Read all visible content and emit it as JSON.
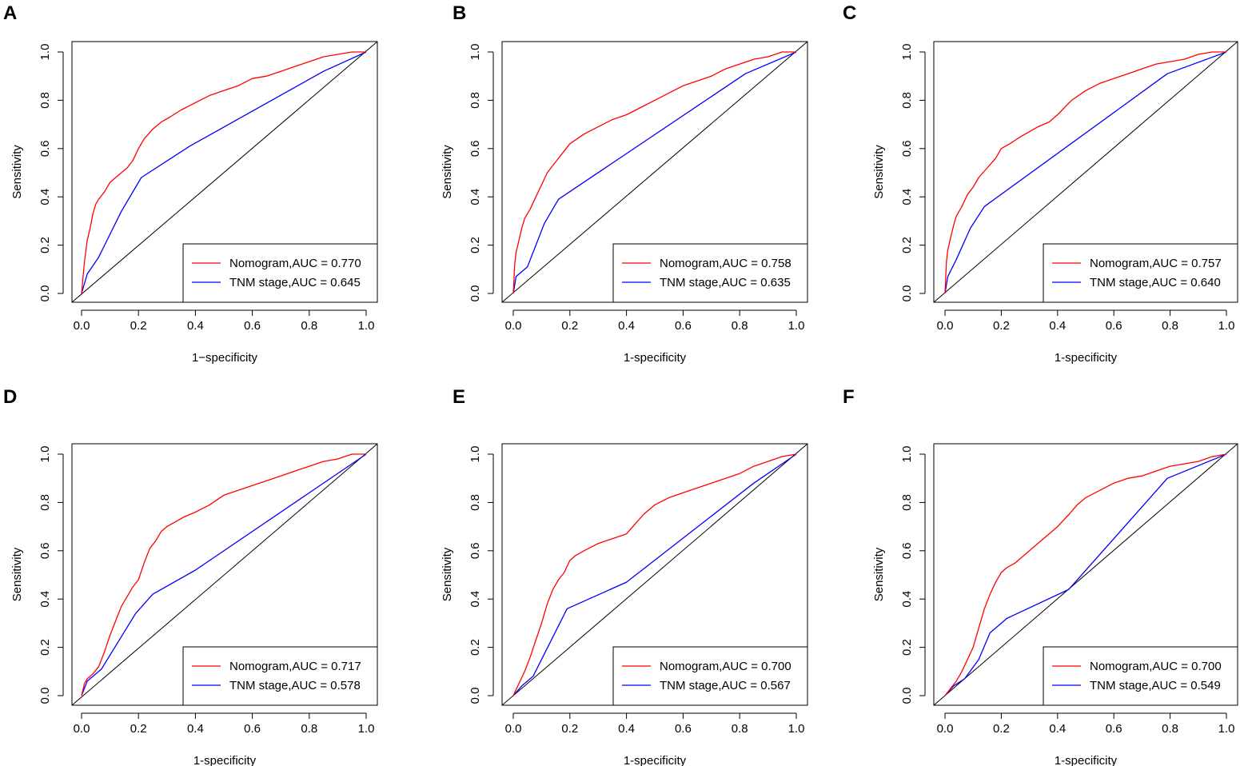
{
  "figure": {
    "colors": {
      "nomogram": "#ff0000",
      "tnm": "#0000ff",
      "reference": "#000000"
    }
  },
  "chart_data": [
    {
      "panel": "A",
      "type": "line",
      "xlabel": "1−specificity",
      "ylabel": "Sensitivity",
      "xlim": [
        0,
        1
      ],
      "ylim": [
        0,
        1
      ],
      "xticks": [
        "0.0",
        "0.2",
        "0.4",
        "0.6",
        "0.8",
        "1.0"
      ],
      "yticks": [
        "0.0",
        "0.2",
        "0.4",
        "0.6",
        "0.8",
        "1.0"
      ],
      "legend": "bottom-right",
      "series": [
        {
          "name": "Nomogram,AUC = 0.770",
          "color": "#ff0000",
          "x": [
            0,
            0.01,
            0.02,
            0.03,
            0.04,
            0.05,
            0.06,
            0.08,
            0.1,
            0.12,
            0.14,
            0.16,
            0.18,
            0.2,
            0.22,
            0.25,
            0.28,
            0.31,
            0.35,
            0.4,
            0.45,
            0.5,
            0.55,
            0.6,
            0.65,
            0.7,
            0.75,
            0.8,
            0.85,
            0.9,
            0.95,
            1.0
          ],
          "y": [
            0,
            0.13,
            0.22,
            0.27,
            0.33,
            0.37,
            0.39,
            0.42,
            0.46,
            0.48,
            0.5,
            0.52,
            0.55,
            0.6,
            0.64,
            0.68,
            0.71,
            0.73,
            0.76,
            0.79,
            0.82,
            0.84,
            0.86,
            0.89,
            0.9,
            0.92,
            0.94,
            0.96,
            0.98,
            0.99,
            1.0,
            1.0
          ]
        },
        {
          "name": "TNM stage,AUC = 0.645",
          "color": "#0000ff",
          "x": [
            0,
            0.02,
            0.06,
            0.14,
            0.21,
            0.38,
            0.85,
            1.0
          ],
          "y": [
            0,
            0.08,
            0.15,
            0.34,
            0.48,
            0.61,
            0.92,
            1.0
          ]
        }
      ]
    },
    {
      "panel": "B",
      "type": "line",
      "xlabel": "1-specificity",
      "ylabel": "Sensitivity",
      "xlim": [
        0,
        1
      ],
      "ylim": [
        0,
        1
      ],
      "xticks": [
        "0.0",
        "0.2",
        "0.4",
        "0.6",
        "0.8",
        "1.0"
      ],
      "yticks": [
        "0.0",
        "0.2",
        "0.4",
        "0.6",
        "0.8",
        "1.0"
      ],
      "legend": "bottom-right",
      "series": [
        {
          "name": "Nomogram,AUC = 0.758",
          "color": "#ff0000",
          "x": [
            0,
            0.005,
            0.01,
            0.02,
            0.03,
            0.04,
            0.06,
            0.08,
            0.1,
            0.12,
            0.14,
            0.16,
            0.18,
            0.2,
            0.25,
            0.3,
            0.35,
            0.4,
            0.45,
            0.5,
            0.55,
            0.6,
            0.65,
            0.7,
            0.75,
            0.8,
            0.85,
            0.9,
            0.95,
            1.0
          ],
          "y": [
            0,
            0.12,
            0.17,
            0.22,
            0.27,
            0.31,
            0.35,
            0.4,
            0.45,
            0.5,
            0.53,
            0.56,
            0.59,
            0.62,
            0.66,
            0.69,
            0.72,
            0.74,
            0.77,
            0.8,
            0.83,
            0.86,
            0.88,
            0.9,
            0.93,
            0.95,
            0.97,
            0.98,
            1.0,
            1.0
          ]
        },
        {
          "name": "TNM stage,AUC = 0.635",
          "color": "#0000ff",
          "x": [
            0,
            0.01,
            0.05,
            0.11,
            0.16,
            0.82,
            1.0
          ],
          "y": [
            0,
            0.07,
            0.11,
            0.29,
            0.39,
            0.91,
            1.0
          ]
        }
      ]
    },
    {
      "panel": "C",
      "type": "line",
      "xlabel": "1-specificity",
      "ylabel": "Sensitivity",
      "xlim": [
        0,
        1
      ],
      "ylim": [
        0,
        1
      ],
      "xticks": [
        "0.0",
        "0.2",
        "0.4",
        "0.6",
        "0.8",
        "1.0"
      ],
      "yticks": [
        "0.0",
        "0.2",
        "0.4",
        "0.6",
        "0.8",
        "1.0"
      ],
      "legend": "bottom-right",
      "series": [
        {
          "name": "Nomogram,AUC = 0.757",
          "color": "#ff0000",
          "x": [
            0,
            0.005,
            0.01,
            0.02,
            0.03,
            0.04,
            0.06,
            0.08,
            0.1,
            0.12,
            0.15,
            0.18,
            0.2,
            0.23,
            0.27,
            0.3,
            0.33,
            0.37,
            0.4,
            0.45,
            0.5,
            0.55,
            0.6,
            0.65,
            0.7,
            0.75,
            0.8,
            0.85,
            0.9,
            0.95,
            1.0
          ],
          "y": [
            0,
            0.13,
            0.18,
            0.23,
            0.28,
            0.32,
            0.36,
            0.41,
            0.44,
            0.48,
            0.52,
            0.56,
            0.6,
            0.62,
            0.65,
            0.67,
            0.69,
            0.71,
            0.74,
            0.8,
            0.84,
            0.87,
            0.89,
            0.91,
            0.93,
            0.95,
            0.96,
            0.97,
            0.99,
            1.0,
            1.0
          ]
        },
        {
          "name": "TNM stage,AUC = 0.640",
          "color": "#0000ff",
          "x": [
            0,
            0.01,
            0.04,
            0.09,
            0.14,
            0.79,
            1.0
          ],
          "y": [
            0,
            0.07,
            0.14,
            0.27,
            0.36,
            0.91,
            1.0
          ]
        }
      ]
    },
    {
      "panel": "D",
      "type": "line",
      "xlabel": "1-specificity",
      "ylabel": "Sensitivity",
      "xlim": [
        0,
        1
      ],
      "ylim": [
        0,
        1
      ],
      "xticks": [
        "0.0",
        "0.2",
        "0.4",
        "0.6",
        "0.8",
        "1.0"
      ],
      "yticks": [
        "0.0",
        "0.2",
        "0.4",
        "0.6",
        "0.8",
        "1.0"
      ],
      "legend": "bottom-right",
      "series": [
        {
          "name": "Nomogram,AUC = 0.717",
          "color": "#ff0000",
          "x": [
            0,
            0.01,
            0.02,
            0.04,
            0.06,
            0.08,
            0.1,
            0.12,
            0.14,
            0.16,
            0.18,
            0.2,
            0.22,
            0.24,
            0.26,
            0.28,
            0.3,
            0.33,
            0.36,
            0.4,
            0.45,
            0.5,
            0.55,
            0.6,
            0.65,
            0.7,
            0.75,
            0.8,
            0.85,
            0.9,
            0.95,
            1.0
          ],
          "y": [
            0,
            0.05,
            0.07,
            0.09,
            0.12,
            0.18,
            0.25,
            0.31,
            0.37,
            0.41,
            0.45,
            0.48,
            0.55,
            0.61,
            0.64,
            0.68,
            0.7,
            0.72,
            0.74,
            0.76,
            0.79,
            0.83,
            0.85,
            0.87,
            0.89,
            0.91,
            0.93,
            0.95,
            0.97,
            0.98,
            1.0,
            1.0
          ]
        },
        {
          "name": "TNM stage,AUC = 0.578",
          "color": "#0000ff",
          "x": [
            0,
            0.02,
            0.07,
            0.19,
            0.25,
            0.4,
            1.0
          ],
          "y": [
            0,
            0.06,
            0.11,
            0.34,
            0.42,
            0.52,
            1.0
          ]
        }
      ]
    },
    {
      "panel": "E",
      "type": "line",
      "xlabel": "1-specificity",
      "ylabel": "Sensitivity",
      "xlim": [
        0,
        1
      ],
      "ylim": [
        0,
        1
      ],
      "xticks": [
        "0.0",
        "0.2",
        "0.4",
        "0.6",
        "0.8",
        "1.0"
      ],
      "yticks": [
        "0.0",
        "0.2",
        "0.4",
        "0.6",
        "0.8",
        "1.0"
      ],
      "legend": "bottom-right",
      "series": [
        {
          "name": "Nomogram,AUC = 0.700",
          "color": "#ff0000",
          "x": [
            0,
            0.02,
            0.04,
            0.06,
            0.08,
            0.1,
            0.12,
            0.14,
            0.16,
            0.18,
            0.2,
            0.22,
            0.25,
            0.3,
            0.35,
            0.4,
            0.43,
            0.46,
            0.5,
            0.55,
            0.6,
            0.65,
            0.7,
            0.75,
            0.8,
            0.85,
            0.9,
            0.95,
            1.0
          ],
          "y": [
            0,
            0.05,
            0.1,
            0.16,
            0.23,
            0.3,
            0.38,
            0.44,
            0.48,
            0.51,
            0.56,
            0.58,
            0.6,
            0.63,
            0.65,
            0.67,
            0.71,
            0.75,
            0.79,
            0.82,
            0.84,
            0.86,
            0.88,
            0.9,
            0.92,
            0.95,
            0.97,
            0.99,
            1.0
          ]
        },
        {
          "name": "TNM stage,AUC = 0.567",
          "color": "#0000ff",
          "x": [
            0,
            0.03,
            0.07,
            0.19,
            0.4,
            0.85,
            1.0
          ],
          "y": [
            0,
            0.04,
            0.08,
            0.36,
            0.47,
            0.88,
            1.0
          ]
        }
      ]
    },
    {
      "panel": "F",
      "type": "line",
      "xlabel": "1-specificity",
      "ylabel": "Sensitivity",
      "xlim": [
        0,
        1
      ],
      "ylim": [
        0,
        1
      ],
      "xticks": [
        "0.0",
        "0.2",
        "0.4",
        "0.6",
        "0.8",
        "1.0"
      ],
      "yticks": [
        "0.0",
        "0.2",
        "0.4",
        "0.6",
        "0.8",
        "1.0"
      ],
      "legend": "bottom-right",
      "series": [
        {
          "name": "Nomogram,AUC = 0.700",
          "color": "#ff0000",
          "x": [
            0,
            0.02,
            0.04,
            0.06,
            0.08,
            0.1,
            0.12,
            0.14,
            0.16,
            0.18,
            0.2,
            0.22,
            0.25,
            0.28,
            0.32,
            0.36,
            0.4,
            0.44,
            0.47,
            0.5,
            0.55,
            0.6,
            0.65,
            0.7,
            0.75,
            0.8,
            0.85,
            0.9,
            0.95,
            1.0
          ],
          "y": [
            0,
            0.03,
            0.06,
            0.1,
            0.15,
            0.2,
            0.28,
            0.36,
            0.42,
            0.47,
            0.51,
            0.53,
            0.55,
            0.58,
            0.62,
            0.66,
            0.7,
            0.75,
            0.79,
            0.82,
            0.85,
            0.88,
            0.9,
            0.91,
            0.93,
            0.95,
            0.96,
            0.97,
            0.99,
            1.0
          ]
        },
        {
          "name": "TNM stage,AUC = 0.549",
          "color": "#0000ff",
          "x": [
            0,
            0.03,
            0.07,
            0.12,
            0.16,
            0.22,
            0.44,
            0.79,
            1.0
          ],
          "y": [
            0,
            0.04,
            0.07,
            0.15,
            0.26,
            0.32,
            0.44,
            0.9,
            1.0
          ]
        }
      ]
    }
  ]
}
